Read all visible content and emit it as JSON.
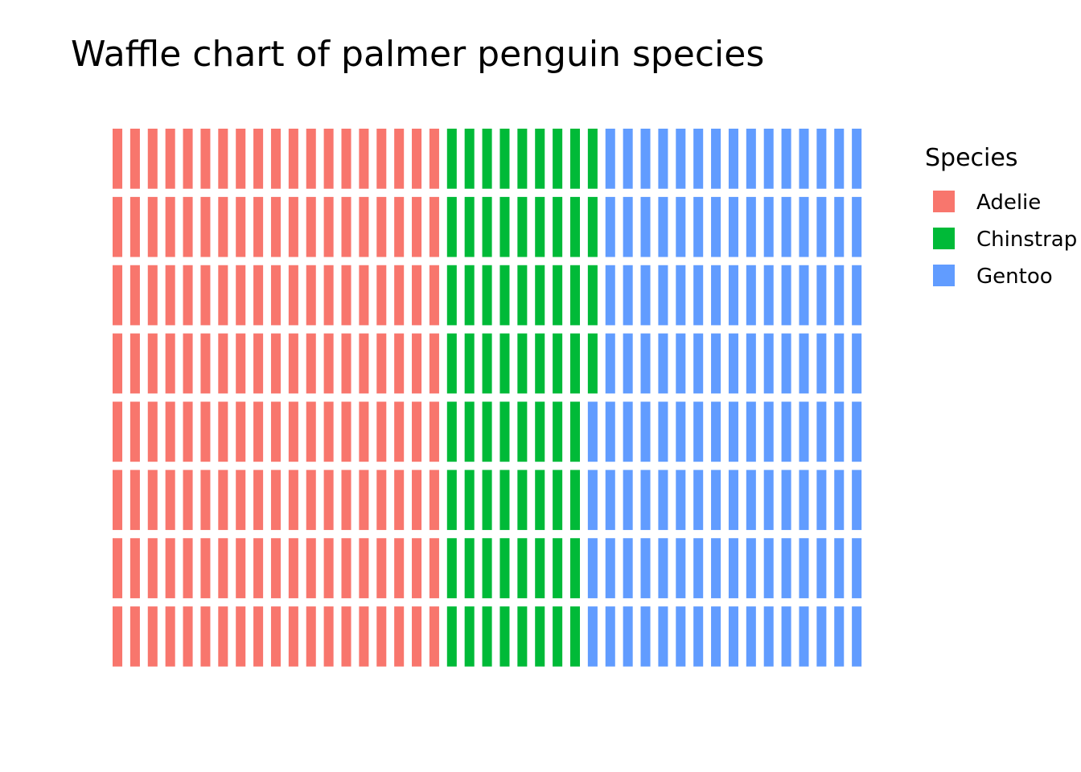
{
  "chart_data": {
    "type": "waffle",
    "title": "Waffle chart of palmer penguin species",
    "rows": 8,
    "fill_order": "column-wise, top to bottom, left to right",
    "grid": false,
    "legend": {
      "title": "Species",
      "placement": "right"
    },
    "series": [
      {
        "name": "Adelie",
        "value": 152,
        "color": "#F8766D"
      },
      {
        "name": "Chinstrap",
        "value": 68,
        "color": "#00BA38"
      },
      {
        "name": "Gentoo",
        "value": 124,
        "color": "#619CFF"
      }
    ]
  }
}
